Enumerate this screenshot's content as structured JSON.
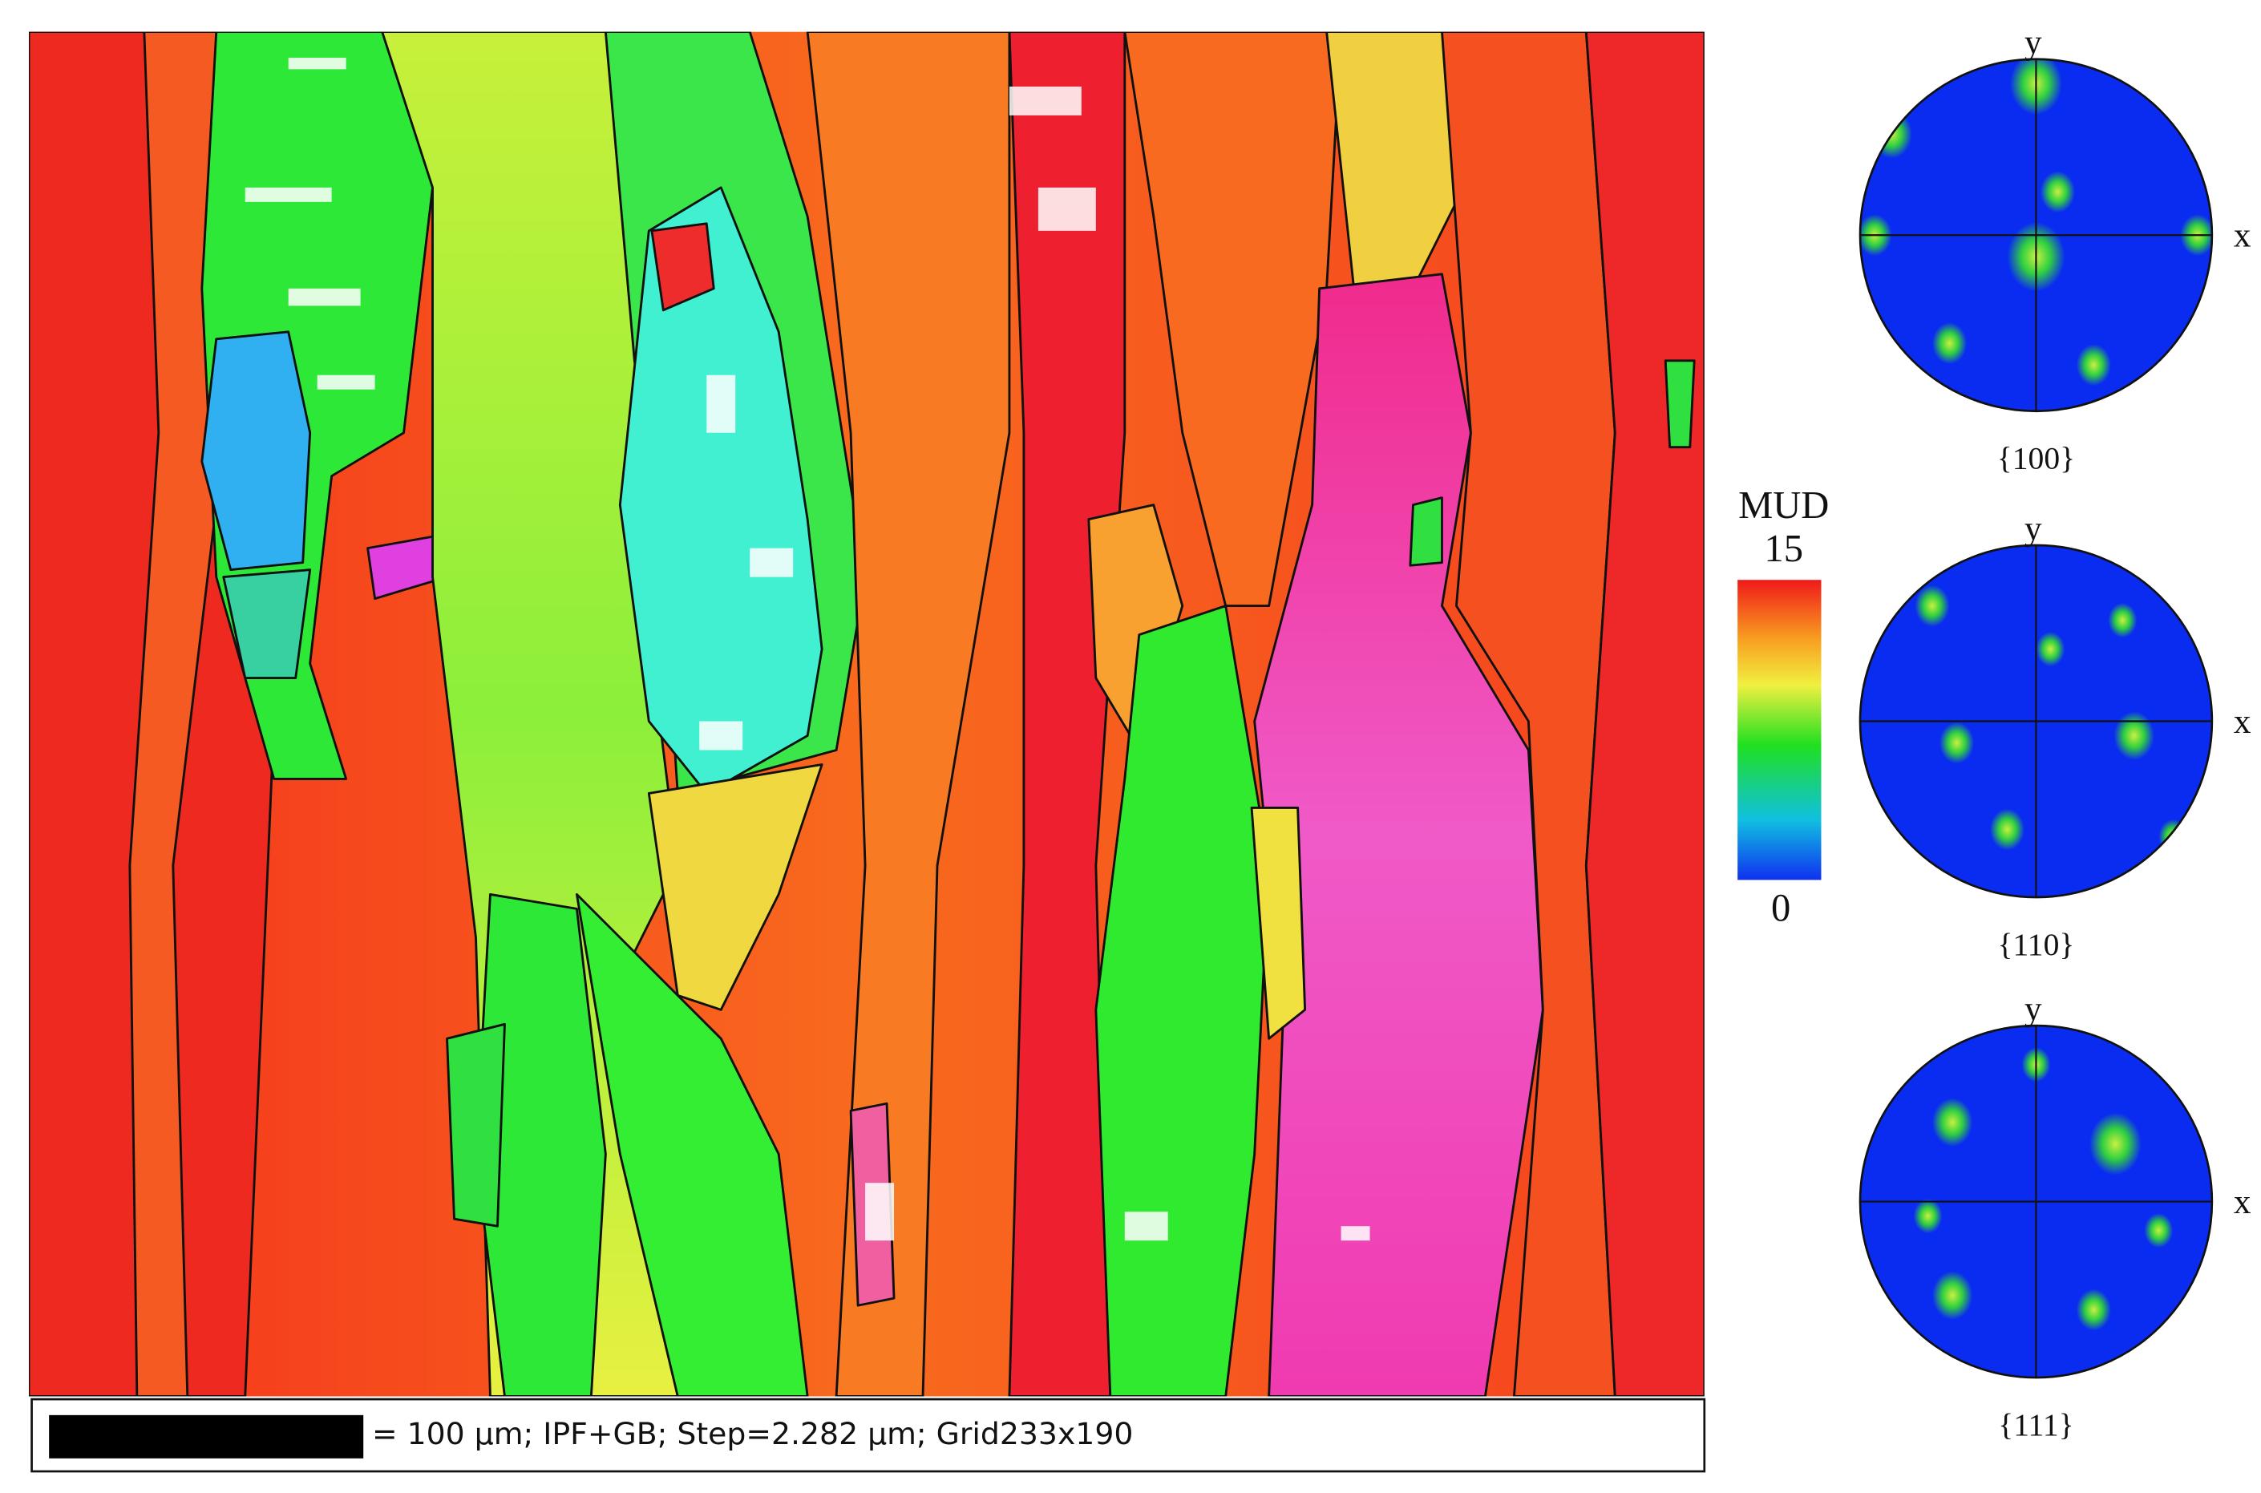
{
  "map": {
    "caption": "= 100 µm; IPF+GB; Step=2.282 µm; Grid233x190"
  },
  "colorbar": {
    "title": "MUD",
    "max": 15,
    "min": 0
  },
  "pole_figures": [
    {
      "y_axis": "y",
      "x_axis": "x",
      "label": "{100}"
    },
    {
      "y_axis": "y",
      "x_axis": "x",
      "label": "{110}"
    },
    {
      "y_axis": "y",
      "x_axis": "x",
      "label": "{111}"
    }
  ]
}
